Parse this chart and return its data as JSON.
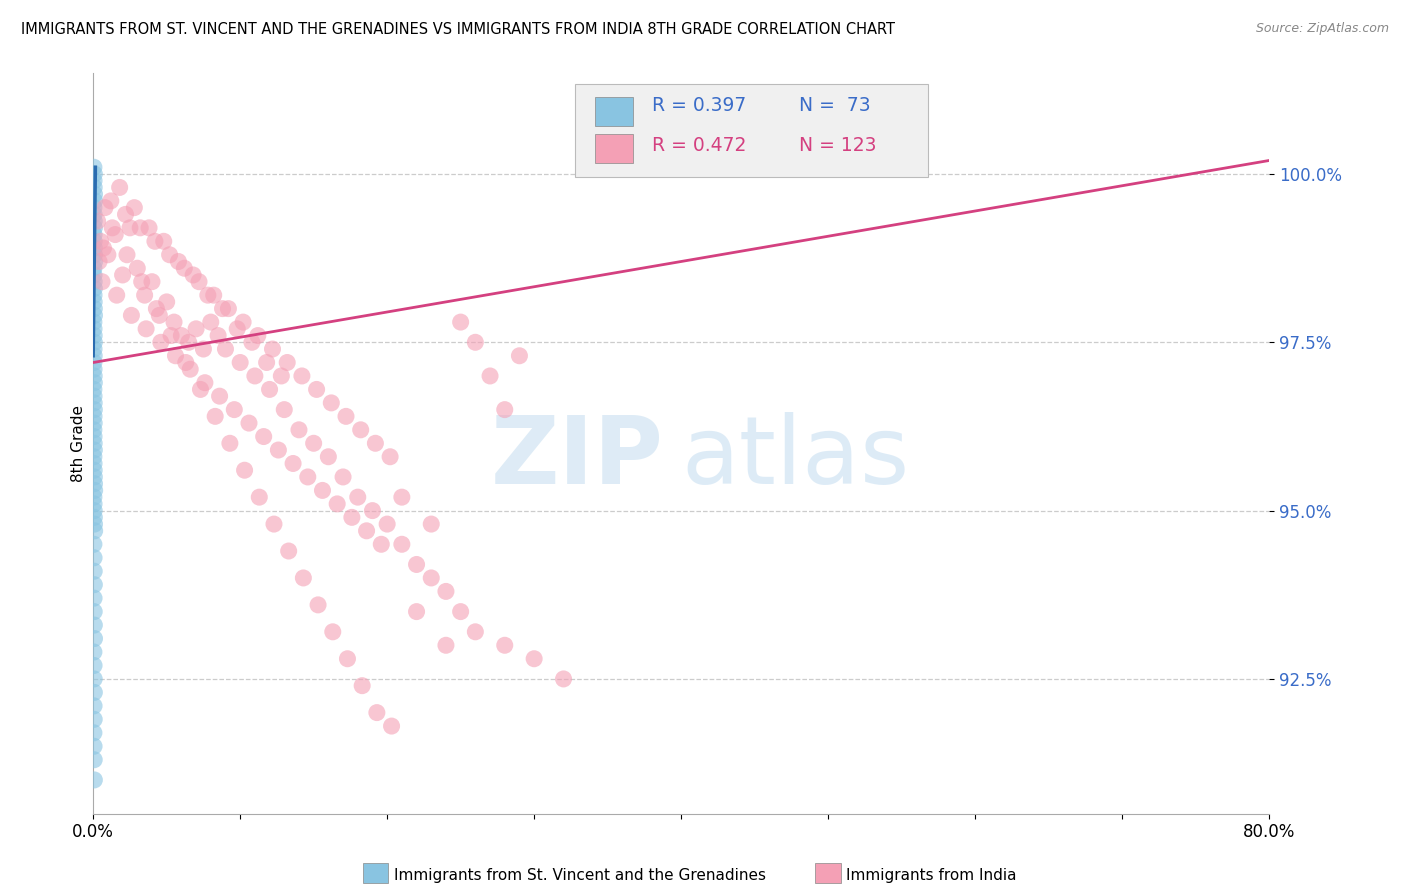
{
  "title": "IMMIGRANTS FROM ST. VINCENT AND THE GRENADINES VS IMMIGRANTS FROM INDIA 8TH GRADE CORRELATION CHART",
  "source": "Source: ZipAtlas.com",
  "ylabel": "8th Grade",
  "ytick_values": [
    92.5,
    95.0,
    97.5,
    100.0
  ],
  "xlim": [
    0.0,
    80.0
  ],
  "ylim": [
    90.5,
    101.5
  ],
  "blue_color": "#89c4e1",
  "pink_color": "#f4a0b5",
  "blue_line_color": "#2b6cb0",
  "pink_line_color": "#d44080",
  "blue_x": [
    0.05,
    0.08,
    0.06,
    0.07,
    0.09,
    0.1,
    0.05,
    0.06,
    0.07,
    0.08,
    0.06,
    0.07,
    0.08,
    0.09,
    0.1,
    0.05,
    0.06,
    0.07,
    0.08,
    0.06,
    0.07,
    0.08,
    0.09,
    0.05,
    0.06,
    0.07,
    0.08,
    0.06,
    0.07,
    0.05,
    0.06,
    0.07,
    0.08,
    0.05,
    0.06,
    0.07,
    0.08,
    0.06,
    0.07,
    0.05,
    0.06,
    0.07,
    0.08,
    0.05,
    0.06,
    0.07,
    0.08,
    0.09,
    0.1,
    0.05,
    0.06,
    0.07,
    0.08,
    0.09,
    0.1,
    0.05,
    0.06,
    0.07,
    0.08,
    0.06,
    0.07,
    0.08,
    0.09,
    0.05,
    0.06,
    0.07,
    0.08,
    0.06,
    0.07,
    0.05,
    0.06,
    0.07,
    0.08
  ],
  "blue_y": [
    100.1,
    100.0,
    99.9,
    99.8,
    99.7,
    99.6,
    99.5,
    99.4,
    99.3,
    99.2,
    99.1,
    99.0,
    98.9,
    98.8,
    98.7,
    98.6,
    98.5,
    98.4,
    98.3,
    98.2,
    98.1,
    98.0,
    97.9,
    97.8,
    97.7,
    97.6,
    97.5,
    97.4,
    97.3,
    97.2,
    97.1,
    97.0,
    96.9,
    96.8,
    96.7,
    96.6,
    96.5,
    96.4,
    96.3,
    96.2,
    96.1,
    96.0,
    95.9,
    95.8,
    95.7,
    95.6,
    95.5,
    95.4,
    95.3,
    95.2,
    95.1,
    95.0,
    94.9,
    94.8,
    94.7,
    94.5,
    94.3,
    94.1,
    93.9,
    93.7,
    93.5,
    93.3,
    93.1,
    92.9,
    92.7,
    92.5,
    92.3,
    92.1,
    91.9,
    91.7,
    91.5,
    91.3,
    91.0
  ],
  "pink_x": [
    0.3,
    0.5,
    0.8,
    1.0,
    1.5,
    2.0,
    2.5,
    3.0,
    3.5,
    4.0,
    4.5,
    5.0,
    5.5,
    6.0,
    6.5,
    7.0,
    7.5,
    8.0,
    8.5,
    9.0,
    10.0,
    11.0,
    12.0,
    13.0,
    14.0,
    15.0,
    16.0,
    17.0,
    18.0,
    19.0,
    20.0,
    21.0,
    22.0,
    23.0,
    24.0,
    25.0,
    26.0,
    28.0,
    30.0,
    32.0,
    1.2,
    2.2,
    3.2,
    4.2,
    5.2,
    6.2,
    7.2,
    8.2,
    9.2,
    10.2,
    11.2,
    12.2,
    13.2,
    14.2,
    15.2,
    16.2,
    17.2,
    18.2,
    19.2,
    20.2,
    1.8,
    2.8,
    3.8,
    4.8,
    5.8,
    6.8,
    7.8,
    8.8,
    9.8,
    10.8,
    11.8,
    12.8,
    0.6,
    1.6,
    2.6,
    3.6,
    4.6,
    5.6,
    6.6,
    7.6,
    8.6,
    9.6,
    10.6,
    11.6,
    12.6,
    13.6,
    14.6,
    15.6,
    16.6,
    17.6,
    18.6,
    19.6,
    21.0,
    23.0,
    25.0,
    26.0,
    27.0,
    28.0,
    29.0,
    0.4,
    0.7,
    1.3,
    2.3,
    3.3,
    4.3,
    5.3,
    6.3,
    7.3,
    8.3,
    9.3,
    10.3,
    11.3,
    12.3,
    13.3,
    14.3,
    15.3,
    16.3,
    17.3,
    18.3,
    19.3,
    20.3,
    22.0,
    24.0
  ],
  "pink_y": [
    99.3,
    99.0,
    99.5,
    98.8,
    99.1,
    98.5,
    99.2,
    98.6,
    98.2,
    98.4,
    97.9,
    98.1,
    97.8,
    97.6,
    97.5,
    97.7,
    97.4,
    97.8,
    97.6,
    97.4,
    97.2,
    97.0,
    96.8,
    96.5,
    96.2,
    96.0,
    95.8,
    95.5,
    95.2,
    95.0,
    94.8,
    94.5,
    94.2,
    94.0,
    93.8,
    93.5,
    93.2,
    93.0,
    92.8,
    92.5,
    99.6,
    99.4,
    99.2,
    99.0,
    98.8,
    98.6,
    98.4,
    98.2,
    98.0,
    97.8,
    97.6,
    97.4,
    97.2,
    97.0,
    96.8,
    96.6,
    96.4,
    96.2,
    96.0,
    95.8,
    99.8,
    99.5,
    99.2,
    99.0,
    98.7,
    98.5,
    98.2,
    98.0,
    97.7,
    97.5,
    97.2,
    97.0,
    98.4,
    98.2,
    97.9,
    97.7,
    97.5,
    97.3,
    97.1,
    96.9,
    96.7,
    96.5,
    96.3,
    96.1,
    95.9,
    95.7,
    95.5,
    95.3,
    95.1,
    94.9,
    94.7,
    94.5,
    95.2,
    94.8,
    97.8,
    97.5,
    97.0,
    96.5,
    97.3,
    98.7,
    98.9,
    99.2,
    98.8,
    98.4,
    98.0,
    97.6,
    97.2,
    96.8,
    96.4,
    96.0,
    95.6,
    95.2,
    94.8,
    94.4,
    94.0,
    93.6,
    93.2,
    92.8,
    92.4,
    92.0,
    91.8,
    93.5,
    93.0
  ],
  "blue_trendline_x": [
    0.0,
    0.15
  ],
  "blue_trendline_y": [
    97.3,
    100.1
  ],
  "pink_trendline_x": [
    0.0,
    80.0
  ],
  "pink_trendline_y": [
    97.2,
    100.2
  ]
}
